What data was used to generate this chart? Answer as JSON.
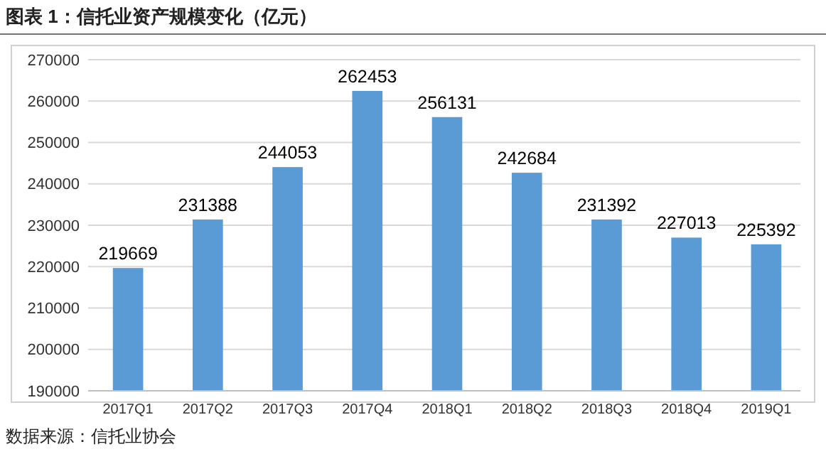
{
  "chart_data": {
    "type": "bar",
    "title": "图表 1：信托业资产规模变化（亿元）",
    "categories": [
      "2017Q1",
      "2017Q2",
      "2017Q3",
      "2017Q4",
      "2018Q1",
      "2018Q2",
      "2018Q3",
      "2018Q4",
      "2019Q1"
    ],
    "values": [
      219669,
      231388,
      244053,
      262453,
      256131,
      242684,
      231392,
      227013,
      225392
    ],
    "color": "#5b9bd5",
    "data_labels": true,
    "grid": "y",
    "ylim": [
      190000,
      270000
    ],
    "yticks": [
      190000,
      200000,
      210000,
      220000,
      230000,
      240000,
      250000,
      260000,
      270000
    ],
    "annotations": [
      "数据来源：信托业协会"
    ]
  }
}
